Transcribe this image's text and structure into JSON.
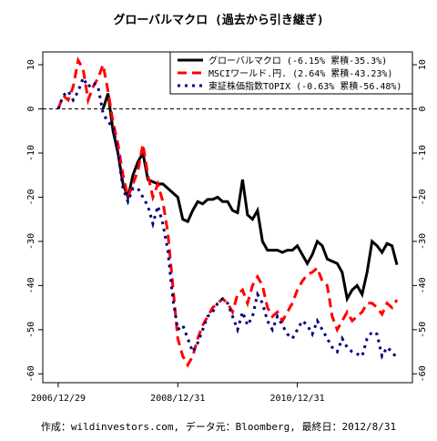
{
  "chart_data": {
    "type": "line",
    "title": "グローバルマクロ (過去から引き継ぎ)",
    "caption": "作成：wildinvestors.com, データ元：Bloomberg, 最終日：2012/8/31",
    "x": [
      0,
      1,
      2,
      3,
      4,
      5,
      6,
      7,
      8,
      9,
      10,
      11,
      12,
      13,
      14,
      15,
      16,
      17,
      18,
      19,
      20,
      21,
      22,
      23,
      24,
      25,
      26,
      27,
      28,
      29,
      30,
      31,
      32,
      33,
      34,
      35,
      36,
      37,
      38,
      39,
      40,
      41,
      42,
      43,
      44,
      45,
      46,
      47,
      48,
      49,
      50,
      51,
      52,
      53,
      54,
      55,
      56,
      57,
      58,
      59,
      60,
      61,
      62,
      63,
      64,
      65,
      66,
      67,
      68
    ],
    "xlim": [
      -3.1,
      71.1
    ],
    "xticks": [
      {
        "value": 0,
        "label": "2006/12/29"
      },
      {
        "value": 24,
        "label": "2008/12/31"
      },
      {
        "value": 48,
        "label": "2010/12/31"
      }
    ],
    "ylim": [
      -62,
      12.9
    ],
    "yticks": [
      10,
      0,
      -10,
      -20,
      -30,
      -40,
      -50,
      -60
    ],
    "hline": 0,
    "legend": "topright",
    "series": [
      {
        "name": "グローバルマクロ (-6.15% 累積-35.3%)",
        "color": "#000000",
        "style": "solid",
        "values": [
          null,
          null,
          null,
          null,
          null,
          null,
          null,
          null,
          null,
          0,
          3.5,
          -5,
          -10,
          -17,
          -20,
          -15,
          -12,
          -10,
          -16,
          -16.5,
          -17,
          -17,
          -18,
          -19,
          -20,
          -25,
          -25.5,
          -23,
          -21,
          -21.5,
          -20.5,
          -20.5,
          -20,
          -21,
          -21,
          -23,
          -23.5,
          -16,
          -24,
          -25,
          -23,
          -30,
          -32,
          -32,
          -32,
          -32.5,
          -32,
          -32,
          -31,
          -33,
          -35,
          -33,
          -30,
          -31,
          -34,
          -34.5,
          -35,
          -37,
          -43,
          -41,
          -40,
          -42,
          -37,
          -30,
          -31,
          -32.5,
          -30.5,
          -31,
          -35.3
        ]
      },
      {
        "name": "MSCIワールド.円. (2.64% 累積-43.23%)",
        "color": "#ff0000",
        "style": "dashed",
        "values": [
          0,
          3,
          2,
          5,
          11,
          9,
          2,
          5,
          7,
          10,
          4,
          -3,
          -8,
          -15,
          -20,
          -17,
          -14,
          -8,
          -15,
          -20,
          -17,
          -21,
          -28,
          -40,
          -52,
          -56,
          -58,
          -56,
          -52,
          -49,
          -47,
          -45,
          -44,
          -43,
          -44,
          -46,
          -42,
          -41,
          -44,
          -40,
          -38,
          -40,
          -45,
          -47,
          -46,
          -48,
          -46,
          -44,
          -41,
          -39,
          -37.5,
          -37,
          -36,
          -39,
          -40,
          -47,
          -50,
          -48,
          -46,
          -48,
          -47,
          -46,
          -44,
          -44,
          -45,
          -46.5,
          -44,
          -45,
          -43.23
        ]
      },
      {
        "name": "東証株価指数TOPIX (-0.63% 累積-56.48%)",
        "color": "#000080",
        "style": "dotted",
        "values": [
          0,
          3,
          4,
          2,
          4,
          7,
          5,
          6,
          5,
          -1,
          -3,
          -4,
          -10,
          -18,
          -21,
          -18,
          -18,
          -20,
          -22,
          -26,
          -22,
          -26,
          -32,
          -43,
          -50,
          -49,
          -52,
          -55,
          -53,
          -50,
          -47,
          -46,
          -44,
          -43,
          -44,
          -47,
          -50,
          -46,
          -49,
          -47,
          -42,
          -44,
          -48,
          -50,
          -47,
          -49,
          -51,
          -52,
          -50,
          -48,
          -49,
          -51,
          -48,
          -50,
          -52,
          -54,
          -55,
          -52,
          -54,
          -55,
          -55.5,
          -56,
          -52,
          -50.5,
          -51,
          -56,
          -54,
          -55,
          -56.48
        ]
      }
    ]
  }
}
